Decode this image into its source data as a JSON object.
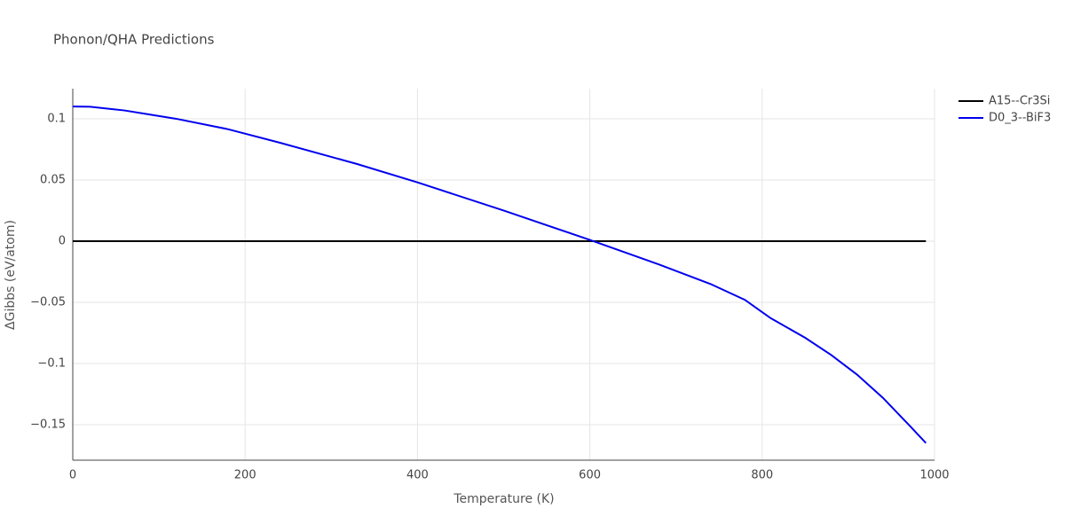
{
  "chart_data": {
    "type": "line",
    "title": "Phonon/QHA Predictions",
    "x_label": "Temperature (K)",
    "y_label": "ΔGibbs (eV/atom)",
    "xlim": [
      0,
      1000
    ],
    "xticks": [
      0,
      200,
      400,
      600,
      800,
      1000
    ],
    "ylim": [
      -0.179,
      0.1246
    ],
    "yticks": [
      {
        "value": -0.15,
        "label": "−0.15"
      },
      {
        "value": -0.1,
        "label": "−0.1"
      },
      {
        "value": -0.05,
        "label": "−0.05"
      },
      0,
      0.05,
      0.1
    ],
    "grid": true,
    "legend": "top-right",
    "series": [
      {
        "name": "A15--Cr3Si",
        "color": "#000000",
        "x": [
          0,
          990
        ],
        "values": [
          0,
          0
        ]
      },
      {
        "name": "D0_3--BiF3",
        "color": "#0000ee",
        "x": [
          0,
          20,
          60,
          120,
          180,
          240,
          330,
          400,
          500,
          600,
          680,
          740,
          780,
          800,
          810,
          850,
          880,
          910,
          940,
          970,
          990
        ],
        "values": [
          0.11,
          0.1098,
          0.1068,
          0.1,
          0.0915,
          0.0805,
          0.063,
          0.048,
          0.025,
          0.001,
          -0.019,
          -0.035,
          -0.048,
          -0.058,
          -0.063,
          -0.079,
          -0.093,
          -0.109,
          -0.128,
          -0.15,
          -0.165
        ]
      }
    ]
  }
}
